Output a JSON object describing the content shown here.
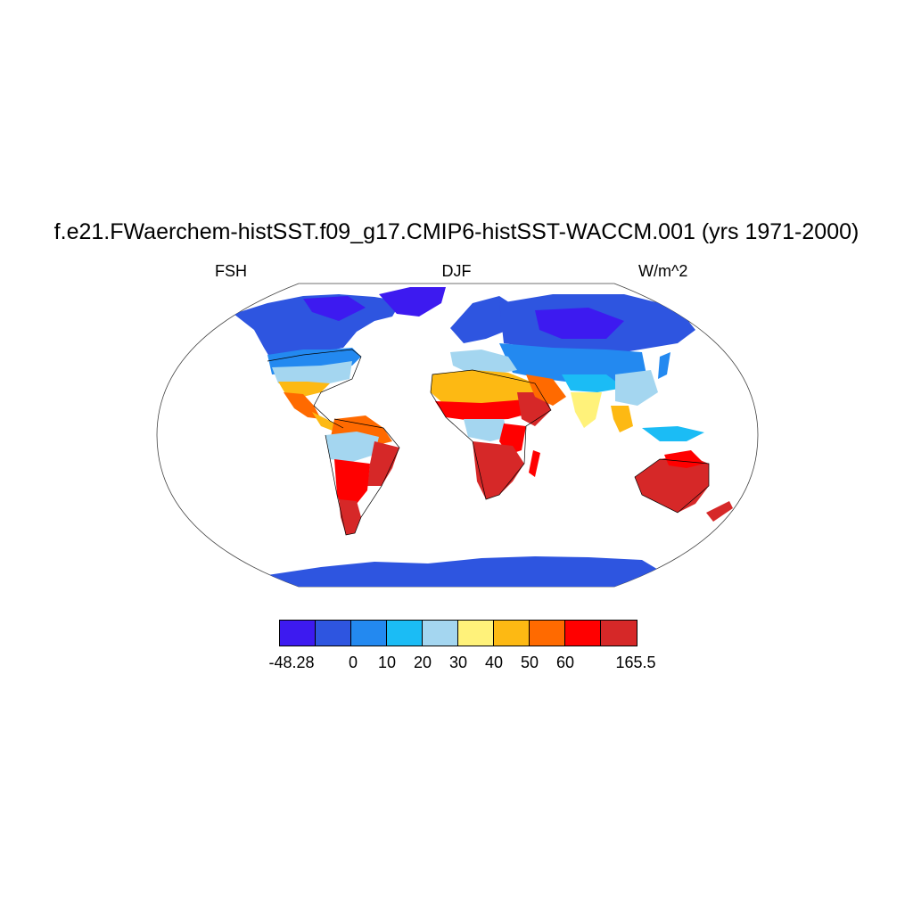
{
  "title": "f.e21.FWaerchem-histSST.f09_g17.CMIP6-histSST-WACCM.001 (yrs 1971-2000)",
  "left_label": "FSH",
  "center_label": "DJF",
  "right_label": "W/m^2",
  "colorbar": {
    "colors": [
      "#3d1af0",
      "#2e55e0",
      "#2389f0",
      "#1bbcf5",
      "#a4d6f0",
      "#fff27a",
      "#fdb913",
      "#ff6a00",
      "#ff0000",
      "#d62828"
    ],
    "labels": [
      "-48.28",
      "0",
      "10",
      "20",
      "30",
      "40",
      "50",
      "60",
      "165.5"
    ]
  },
  "map": {
    "projection": "Robinson",
    "legend_placement": "bottom"
  }
}
